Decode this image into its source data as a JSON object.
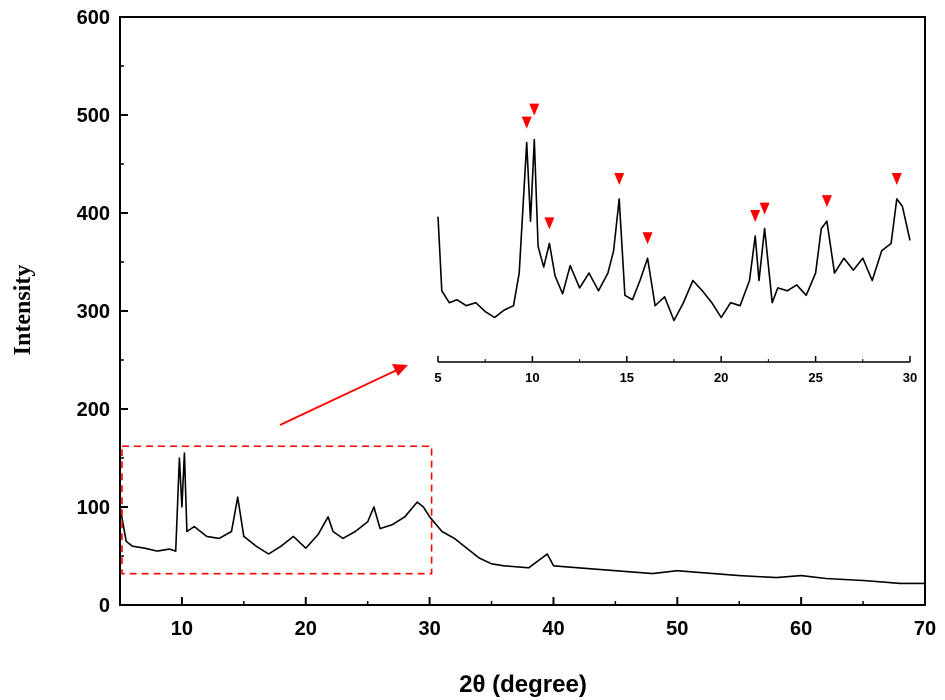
{
  "chart_data": [
    {
      "type": "line",
      "xlabel": "2θ (degree)",
      "ylabel": "Intensity",
      "xlim": [
        5,
        70
      ],
      "ylim": [
        0,
        600
      ],
      "x_ticks": [
        10,
        20,
        30,
        40,
        50,
        60,
        70
      ],
      "y_ticks": [
        0,
        100,
        200,
        300,
        400,
        500,
        600
      ],
      "grid": false,
      "series": [
        {
          "color": "#000000",
          "x": [
            5,
            5.5,
            6,
            7,
            8,
            9,
            9.5,
            9.8,
            10.0,
            10.2,
            10.4,
            11,
            12,
            13,
            14,
            14.5,
            15,
            16,
            17,
            18,
            19,
            20,
            21,
            21.8,
            22.2,
            23,
            24,
            25,
            25.5,
            26,
            27,
            28,
            29,
            29.5,
            30,
            31,
            32,
            33,
            34,
            35,
            36,
            38,
            39.5,
            40,
            42,
            45,
            48,
            50,
            52,
            55,
            58,
            60,
            62,
            65,
            68,
            70
          ],
          "y": [
            100,
            65,
            60,
            58,
            55,
            57,
            55,
            150,
            100,
            155,
            75,
            80,
            70,
            68,
            75,
            110,
            70,
            60,
            52,
            60,
            70,
            58,
            72,
            90,
            75,
            68,
            75,
            85,
            100,
            78,
            82,
            90,
            105,
            100,
            90,
            75,
            68,
            58,
            48,
            42,
            40,
            38,
            52,
            40,
            38,
            35,
            32,
            35,
            33,
            30,
            28,
            30,
            27,
            25,
            22,
            22
          ]
        }
      ],
      "highlight_region": {
        "x": [
          5,
          30
        ],
        "y": [
          32,
          162
        ]
      }
    },
    {
      "type": "line",
      "xlim": [
        5,
        30
      ],
      "x_ticks": [
        5,
        10,
        15,
        20,
        25,
        30
      ],
      "series": [
        {
          "color": "#000000",
          "x": [
            5,
            5.2,
            5.6,
            6,
            6.5,
            7,
            7.5,
            8,
            8.5,
            9,
            9.3,
            9.7,
            9.9,
            10.1,
            10.3,
            10.6,
            10.9,
            11.2,
            11.6,
            12,
            12.5,
            13,
            13.5,
            14,
            14.3,
            14.6,
            14.9,
            15.3,
            15.7,
            16.1,
            16.5,
            17,
            17.5,
            18,
            18.5,
            19,
            19.5,
            20,
            20.5,
            21,
            21.5,
            21.8,
            22.0,
            22.3,
            22.7,
            23,
            23.5,
            24,
            24.5,
            25,
            25.3,
            25.6,
            26,
            26.5,
            27,
            27.5,
            28,
            28.5,
            29,
            29.3,
            29.6,
            30
          ],
          "y": [
            98,
            48,
            40,
            42,
            38,
            40,
            34,
            30,
            35,
            38,
            60,
            148,
            95,
            150,
            78,
            64,
            80,
            58,
            46,
            65,
            50,
            60,
            48,
            60,
            75,
            110,
            45,
            42,
            55,
            70,
            38,
            44,
            28,
            40,
            55,
            48,
            40,
            30,
            40,
            38,
            55,
            85,
            55,
            90,
            40,
            50,
            48,
            52,
            45,
            60,
            90,
            95,
            60,
            70,
            62,
            70,
            55,
            75,
            80,
            110,
            105,
            82
          ]
        }
      ],
      "markers": {
        "symbol": "▼",
        "color": "#ff0000",
        "x": [
          9.7,
          10.1,
          10.9,
          14.6,
          16.1,
          21.8,
          22.3,
          25.6,
          29.3
        ]
      }
    }
  ]
}
